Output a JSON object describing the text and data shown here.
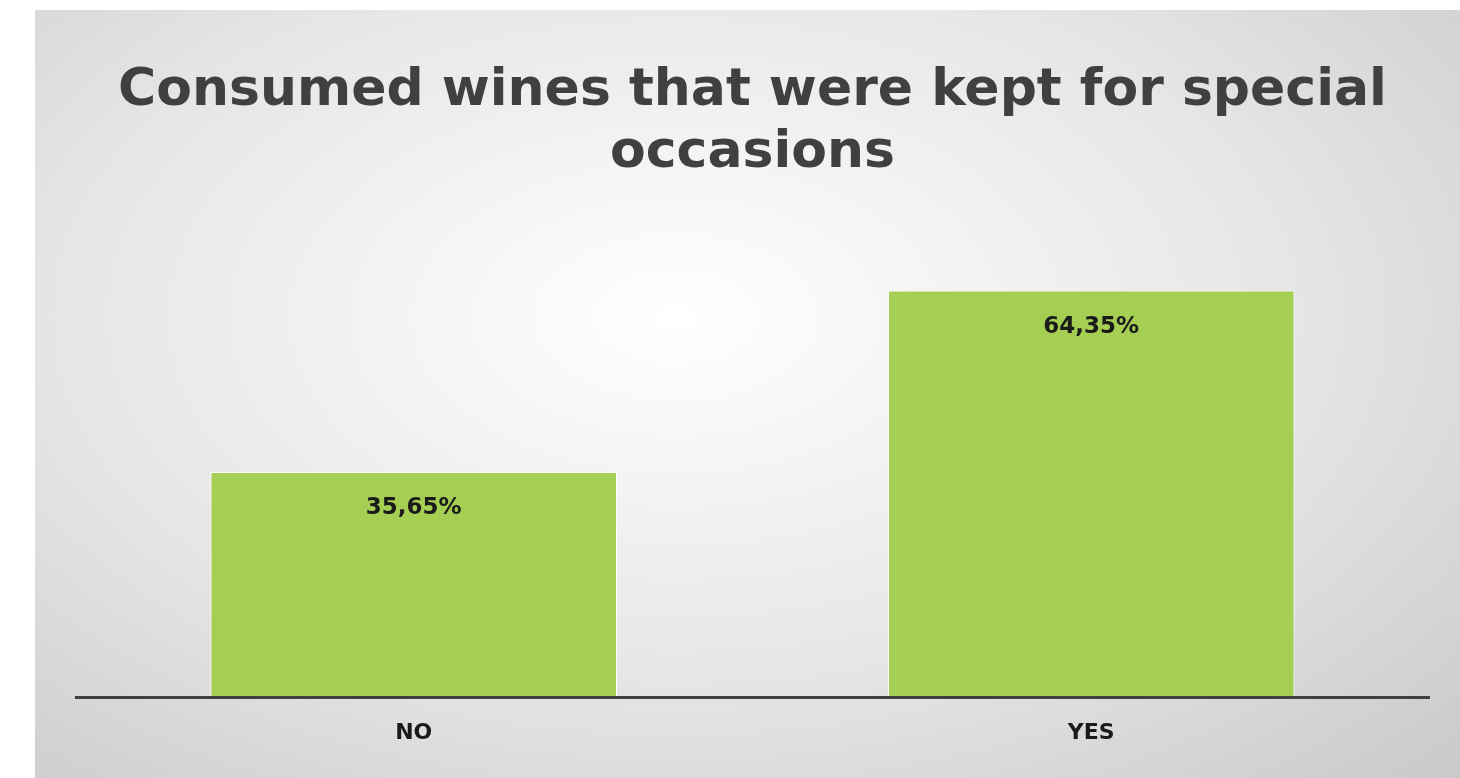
{
  "chart_data": {
    "type": "bar",
    "title": "Consumed wines that were kept for special occasions",
    "categories": [
      "NO",
      "YES"
    ],
    "values": [
      35.65,
      64.35
    ],
    "color": "#a5cf52",
    "value_labels": [
      "35,65%",
      "64,35%"
    ],
    "grid": false,
    "legend": false
  }
}
